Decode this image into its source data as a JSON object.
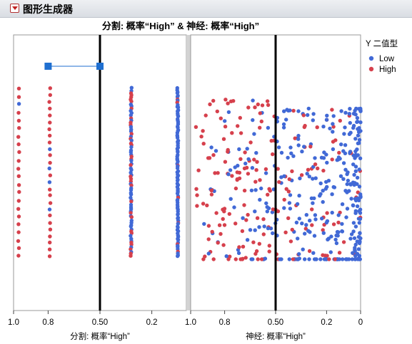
{
  "window": {
    "title": "图形生成器"
  },
  "icons": {
    "disclosure": "disclosure-triangle-icon"
  },
  "colors": {
    "low": "#4169d6",
    "high": "#d6404c",
    "divider": "#d3d3d3",
    "axis": "#444444"
  },
  "chart_data": {
    "type": "scatter",
    "title": "分割: 概率“High” & 神经: 概率“High”",
    "legend": {
      "title": "Y 二值型",
      "placement": "right",
      "entries": [
        "Low",
        "High"
      ]
    },
    "panels": [
      {
        "name": "split",
        "xlabel": "分割: 概率“High”",
        "xlim": [
          1.0,
          0.0
        ],
        "x_reversed": true,
        "ticks": [
          "1.0",
          "0.8",
          "0.50",
          "0.2"
        ],
        "tick_values": [
          1.0,
          0.8,
          0.5,
          0.2
        ],
        "reference_line": 0.5,
        "segment": {
          "x1": 0.8,
          "x2": 0.5
        },
        "clusters": [
          {
            "x": 0.97,
            "count": 22,
            "high_fraction": 0.85
          },
          {
            "x": 0.79,
            "count": 26,
            "high_fraction": 0.85
          },
          {
            "x": 0.32,
            "count": 75,
            "high_fraction": 0.35
          },
          {
            "x": 0.05,
            "count": 95,
            "high_fraction": 0.08
          }
        ]
      },
      {
        "name": "neural",
        "xlabel": "神经: 概率“High”",
        "xlim": [
          1.0,
          0.0
        ],
        "x_reversed": true,
        "ticks": [
          "1.0",
          "0.8",
          "0.50",
          "0.2",
          "0"
        ],
        "tick_values": [
          1.0,
          0.8,
          0.5,
          0.2,
          0.0
        ],
        "reference_line": 0.5,
        "point_count": 520
      }
    ]
  }
}
